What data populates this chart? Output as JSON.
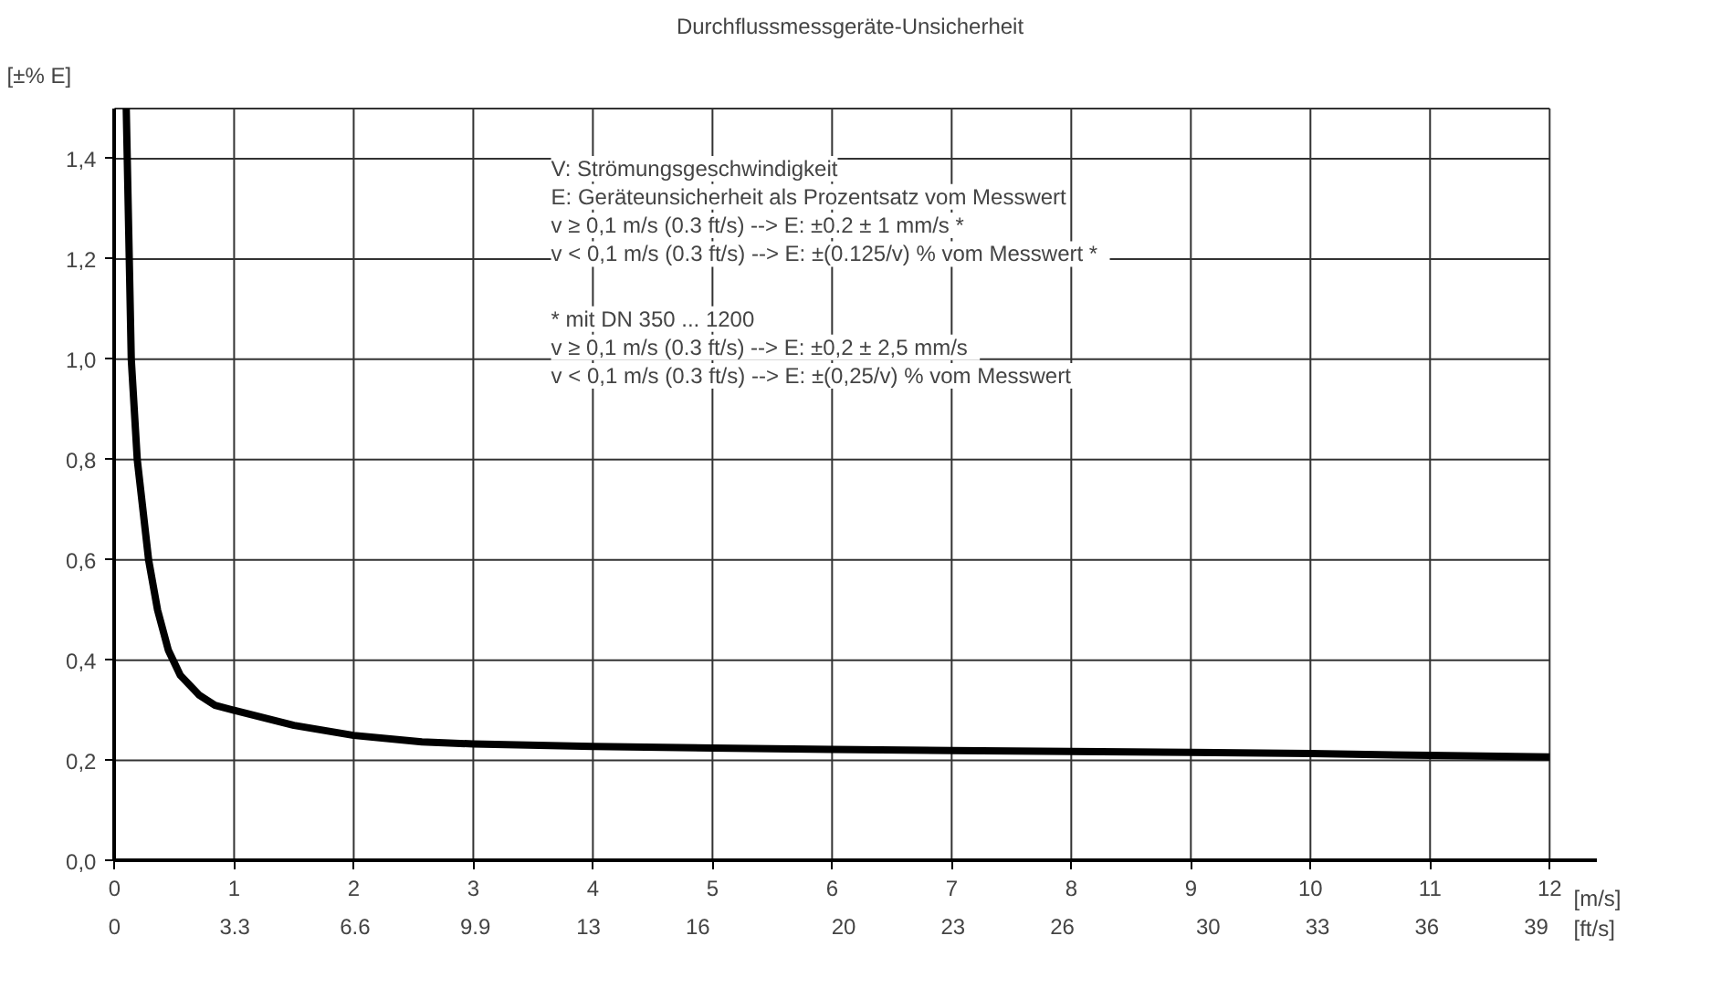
{
  "chart_data": {
    "type": "line",
    "title": "Durchflussmessgeräte-Unsicherheit",
    "ylabel": "[±% E]",
    "xlabel": "[m/s]",
    "x2label": "[ft/s]",
    "x": [
      0.098,
      0.14,
      0.19,
      0.285,
      0.36,
      0.45,
      0.55,
      0.71,
      0.84,
      1,
      1.5,
      2,
      2.57,
      3,
      4,
      5,
      6,
      7,
      8,
      9,
      10,
      11,
      12
    ],
    "series": [
      {
        "color": "#000000",
        "values": [
          1.5,
          1.0,
          0.8,
          0.6,
          0.5,
          0.42,
          0.37,
          0.33,
          0.31,
          0.3,
          0.27,
          0.25,
          0.237,
          0.233,
          0.228,
          0.225,
          0.222,
          0.22,
          0.218,
          0.216,
          0.214,
          0.21,
          0.207
        ]
      }
    ],
    "xlim": [
      0,
      12.4
    ],
    "xticks": [
      0,
      1,
      2,
      3,
      4,
      5,
      6,
      7,
      8,
      9,
      10,
      11,
      12
    ],
    "x2lim": [
      0,
      40.68
    ],
    "x2ticks": [
      0,
      3.3,
      6.6,
      9.9,
      13,
      16,
      20,
      23,
      26,
      30,
      33,
      36,
      39
    ],
    "ylim": [
      0,
      1.5
    ],
    "yticks": [
      {
        "value": 0,
        "label": "0,0"
      },
      {
        "value": 0.2,
        "label": "0,2"
      },
      {
        "value": 0.4,
        "label": "0,4"
      },
      {
        "value": 0.6,
        "label": "0,6"
      },
      {
        "value": 0.8,
        "label": "0,8"
      },
      {
        "value": 1.0,
        "label": "1,0"
      },
      {
        "value": 1.2,
        "label": "1,2"
      },
      {
        "value": 1.4,
        "label": "1,4"
      }
    ],
    "grid": true,
    "marker": "none",
    "line_style": "solid",
    "annotations": [
      "V: Strömungsgeschwindigkeit",
      "E: Geräteunsicherheit als Prozentsatz vom Messwert",
      "v ≥  0,1 m/s (0.3 ft/s) --> E:  ±0.2 ± 1 mm/s *",
      "v <  0,1 m/s (0.3 ft/s) --> E:  ±(0.125/v) % vom Messwert *",
      "* mit DN 350 ... 1200",
      "v ≥  0,1 m/s (0.3 ft/s) --> E:  ±0,2 ± 2,5 mm/s",
      "v <  0,1 m/s (0.3 ft/s) --> E:  ±(0,25/v) % vom Messwert"
    ]
  }
}
